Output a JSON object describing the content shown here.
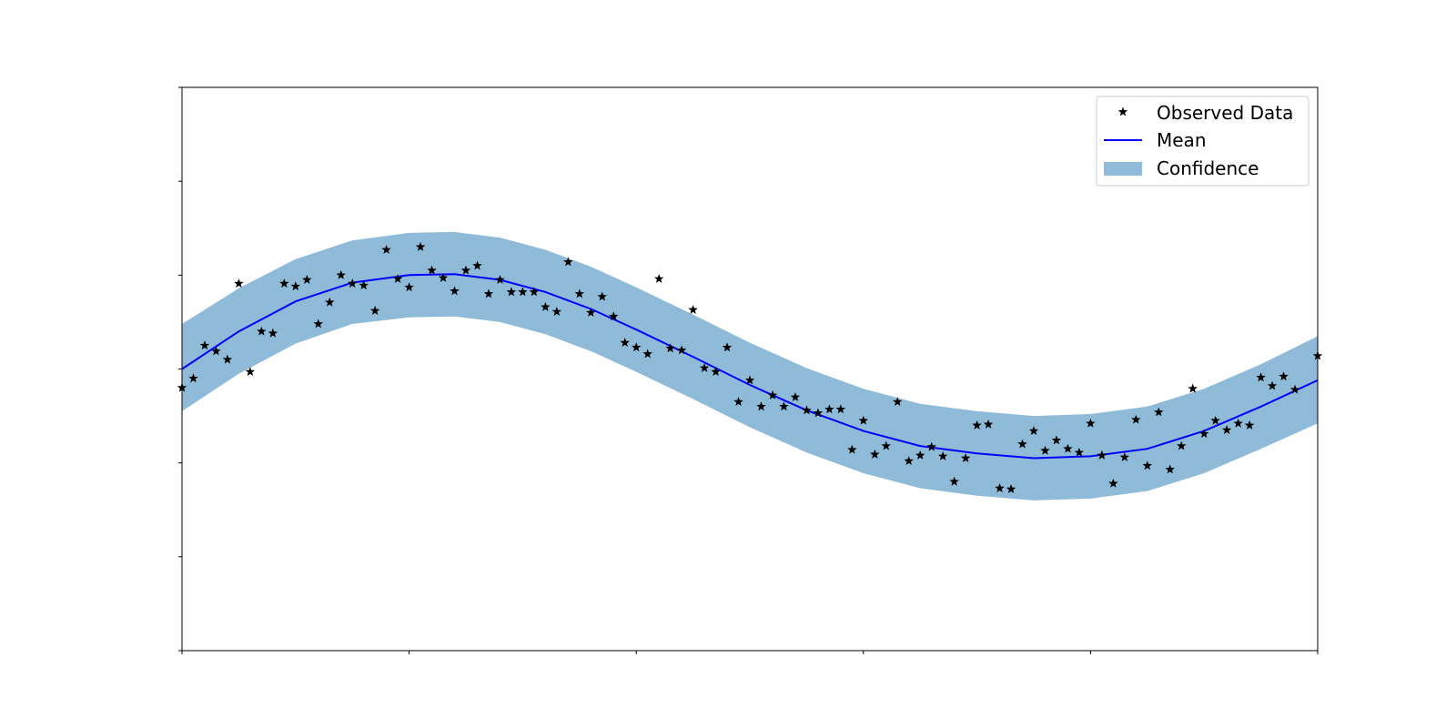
{
  "chart_data": {
    "type": "line",
    "title": "",
    "xlabel": "",
    "ylabel": "",
    "xlim": [
      0,
      5
    ],
    "ylim": [
      -3,
      3
    ],
    "xticks": [
      0,
      1,
      2,
      3,
      4,
      5
    ],
    "yticks": [
      -3,
      -2,
      -1,
      0,
      1,
      2,
      3
    ],
    "tick_labels_visible": false,
    "grid": false,
    "legend": {
      "placement": "top-right",
      "entries": [
        "Observed Data",
        "Mean",
        "Confidence"
      ]
    },
    "colors": {
      "observed": "#000000",
      "mean": "#0000ff",
      "confidence": "#1f77b4"
    },
    "series": [
      {
        "name": "Observed Data",
        "kind": "scatter",
        "marker": "star",
        "points": [
          [
            0.0,
            -0.2
          ],
          [
            0.05,
            -0.1
          ],
          [
            0.1,
            0.25
          ],
          [
            0.15,
            0.19
          ],
          [
            0.2,
            0.1
          ],
          [
            0.25,
            0.91
          ],
          [
            0.3,
            -0.03
          ],
          [
            0.35,
            0.4
          ],
          [
            0.4,
            0.38
          ],
          [
            0.45,
            0.91
          ],
          [
            0.5,
            0.88
          ],
          [
            0.55,
            0.95
          ],
          [
            0.6,
            0.48
          ],
          [
            0.65,
            0.71
          ],
          [
            0.7,
            1.0
          ],
          [
            0.75,
            0.91
          ],
          [
            0.8,
            0.89
          ],
          [
            0.85,
            0.62
          ],
          [
            0.9,
            1.27
          ],
          [
            0.95,
            0.96
          ],
          [
            1.0,
            0.87
          ],
          [
            1.05,
            1.3
          ],
          [
            1.1,
            1.05
          ],
          [
            1.15,
            0.97
          ],
          [
            1.2,
            0.83
          ],
          [
            1.25,
            1.05
          ],
          [
            1.3,
            1.1
          ],
          [
            1.35,
            0.8
          ],
          [
            1.4,
            0.95
          ],
          [
            1.45,
            0.82
          ],
          [
            1.5,
            0.82
          ],
          [
            1.55,
            0.82
          ],
          [
            1.6,
            0.66
          ],
          [
            1.65,
            0.61
          ],
          [
            1.7,
            1.14
          ],
          [
            1.75,
            0.8
          ],
          [
            1.8,
            0.6
          ],
          [
            1.85,
            0.77
          ],
          [
            1.9,
            0.56
          ],
          [
            1.95,
            0.28
          ],
          [
            2.0,
            0.23
          ],
          [
            2.05,
            0.16
          ],
          [
            2.1,
            0.96
          ],
          [
            2.15,
            0.22
          ],
          [
            2.2,
            0.2
          ],
          [
            2.25,
            0.63
          ],
          [
            2.3,
            0.01
          ],
          [
            2.35,
            -0.03
          ],
          [
            2.4,
            0.23
          ],
          [
            2.45,
            -0.35
          ],
          [
            2.5,
            -0.12
          ],
          [
            2.55,
            -0.4
          ],
          [
            2.6,
            -0.28
          ],
          [
            2.65,
            -0.4
          ],
          [
            2.7,
            -0.3
          ],
          [
            2.75,
            -0.44
          ],
          [
            2.8,
            -0.47
          ],
          [
            2.85,
            -0.43
          ],
          [
            2.9,
            -0.43
          ],
          [
            2.95,
            -0.86
          ],
          [
            3.0,
            -0.55
          ],
          [
            3.05,
            -0.91
          ],
          [
            3.1,
            -0.82
          ],
          [
            3.15,
            -0.35
          ],
          [
            3.2,
            -0.98
          ],
          [
            3.25,
            -0.92
          ],
          [
            3.3,
            -0.83
          ],
          [
            3.35,
            -0.93
          ],
          [
            3.4,
            -1.2
          ],
          [
            3.45,
            -0.95
          ],
          [
            3.5,
            -0.6
          ],
          [
            3.55,
            -0.59
          ],
          [
            3.6,
            -1.27
          ],
          [
            3.65,
            -1.28
          ],
          [
            3.7,
            -0.8
          ],
          [
            3.75,
            -0.66
          ],
          [
            3.8,
            -0.87
          ],
          [
            3.85,
            -0.76
          ],
          [
            3.9,
            -0.85
          ],
          [
            3.95,
            -0.89
          ],
          [
            4.0,
            -0.58
          ],
          [
            4.05,
            -0.92
          ],
          [
            4.1,
            -1.22
          ],
          [
            4.15,
            -0.94
          ],
          [
            4.2,
            -0.54
          ],
          [
            4.25,
            -1.03
          ],
          [
            4.3,
            -0.46
          ],
          [
            4.35,
            -1.07
          ],
          [
            4.4,
            -0.82
          ],
          [
            4.45,
            -0.21
          ],
          [
            4.5,
            -0.69
          ],
          [
            4.55,
            -0.55
          ],
          [
            4.6,
            -0.65
          ],
          [
            4.65,
            -0.58
          ],
          [
            4.7,
            -0.6
          ],
          [
            4.75,
            -0.09
          ],
          [
            4.8,
            -0.18
          ],
          [
            4.85,
            -0.08
          ],
          [
            4.9,
            -0.22
          ],
          [
            5.0,
            0.14
          ]
        ]
      },
      {
        "name": "Mean",
        "kind": "line",
        "points": [
          [
            0.0,
            0.0
          ],
          [
            0.25,
            0.4
          ],
          [
            0.5,
            0.72
          ],
          [
            0.75,
            0.92
          ],
          [
            1.0,
            1.0
          ],
          [
            1.2,
            1.01
          ],
          [
            1.4,
            0.95
          ],
          [
            1.6,
            0.82
          ],
          [
            1.8,
            0.64
          ],
          [
            2.0,
            0.42
          ],
          [
            2.25,
            0.13
          ],
          [
            2.5,
            -0.17
          ],
          [
            2.75,
            -0.44
          ],
          [
            3.0,
            -0.66
          ],
          [
            3.25,
            -0.82
          ],
          [
            3.5,
            -0.9
          ],
          [
            3.75,
            -0.95
          ],
          [
            4.0,
            -0.93
          ],
          [
            4.25,
            -0.85
          ],
          [
            4.5,
            -0.66
          ],
          [
            4.75,
            -0.4
          ],
          [
            5.0,
            -0.12
          ]
        ]
      },
      {
        "name": "Confidence",
        "kind": "band",
        "points": [
          [
            0.0,
            -0.45,
            0.48
          ],
          [
            0.25,
            -0.05,
            0.86
          ],
          [
            0.5,
            0.27,
            1.17
          ],
          [
            0.75,
            0.48,
            1.37
          ],
          [
            1.0,
            0.55,
            1.45
          ],
          [
            1.2,
            0.56,
            1.46
          ],
          [
            1.4,
            0.5,
            1.4
          ],
          [
            1.6,
            0.37,
            1.27
          ],
          [
            1.8,
            0.19,
            1.09
          ],
          [
            2.0,
            -0.03,
            0.87
          ],
          [
            2.25,
            -0.32,
            0.58
          ],
          [
            2.5,
            -0.62,
            0.28
          ],
          [
            2.75,
            -0.89,
            0.01
          ],
          [
            3.0,
            -1.11,
            -0.21
          ],
          [
            3.25,
            -1.27,
            -0.37
          ],
          [
            3.5,
            -1.35,
            -0.45
          ],
          [
            3.75,
            -1.4,
            -0.5
          ],
          [
            4.0,
            -1.38,
            -0.48
          ],
          [
            4.25,
            -1.3,
            -0.4
          ],
          [
            4.5,
            -1.11,
            -0.21
          ],
          [
            4.75,
            -0.85,
            0.05
          ],
          [
            5.0,
            -0.58,
            0.35
          ]
        ]
      }
    ]
  }
}
